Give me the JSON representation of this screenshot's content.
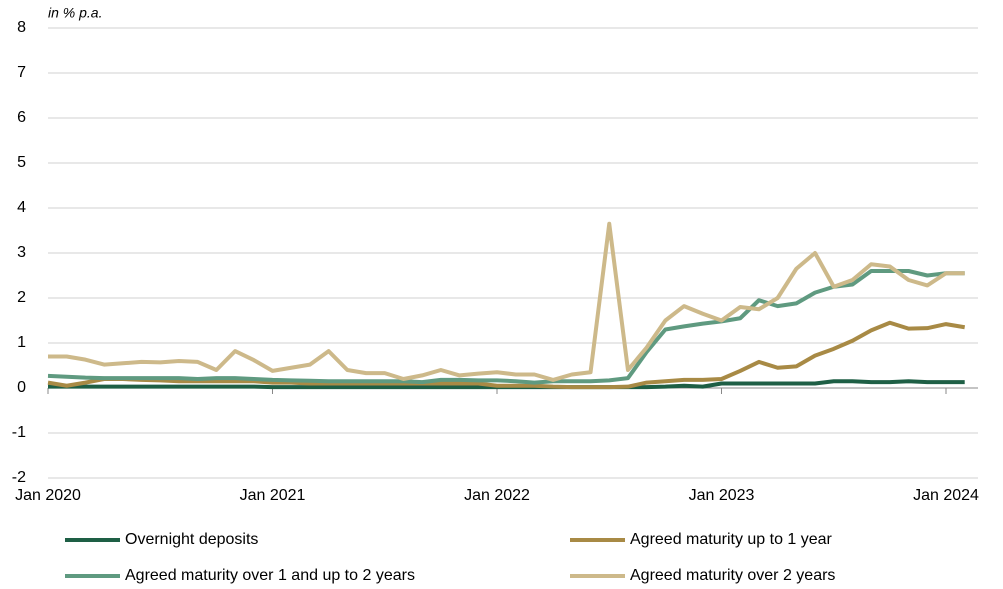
{
  "chart_data": {
    "type": "line",
    "y_label": "in % p.a.",
    "categories": [
      "Jan 2020",
      null,
      null,
      null,
      null,
      null,
      null,
      null,
      null,
      null,
      null,
      null,
      "Jan 2021",
      null,
      null,
      null,
      null,
      null,
      null,
      null,
      null,
      null,
      null,
      null,
      "Jan 2022",
      null,
      null,
      null,
      null,
      null,
      null,
      null,
      null,
      null,
      null,
      null,
      "Jan 2023",
      null,
      null,
      null,
      null,
      null,
      null,
      null,
      null,
      null,
      null,
      null,
      "Jan 2024",
      null
    ],
    "series": [
      {
        "name": "Overnight deposits",
        "color": "#1e5f45",
        "values": [
          0.03,
          0.03,
          0.03,
          0.03,
          0.03,
          0.03,
          0.03,
          0.03,
          0.03,
          0.03,
          0.03,
          0.03,
          0.02,
          0.02,
          0.02,
          0.02,
          0.02,
          0.02,
          0.02,
          0.02,
          0.02,
          0.02,
          0.02,
          0.02,
          0.02,
          0.02,
          0.02,
          0.02,
          0.02,
          0.02,
          0.02,
          0.02,
          0.02,
          0.03,
          0.05,
          0.03,
          0.1,
          0.1,
          0.1,
          0.1,
          0.1,
          0.1,
          0.15,
          0.15,
          0.13,
          0.13,
          0.15,
          0.13,
          0.13,
          0.13
        ]
      },
      {
        "name": "Agreed maturity up to 1 year",
        "color": "#a88a45",
        "values": [
          0.12,
          0.05,
          0.12,
          0.2,
          0.2,
          0.18,
          0.17,
          0.15,
          0.15,
          0.15,
          0.15,
          0.15,
          0.12,
          0.12,
          0.1,
          0.1,
          0.1,
          0.1,
          0.1,
          0.1,
          0.1,
          0.1,
          0.1,
          0.1,
          0.05,
          0.05,
          0.05,
          0.03,
          0.02,
          0.02,
          0.02,
          0.03,
          0.12,
          0.15,
          0.18,
          0.18,
          0.2,
          0.38,
          0.58,
          0.45,
          0.48,
          0.72,
          0.87,
          1.05,
          1.28,
          1.45,
          1.32,
          1.33,
          1.42,
          1.35
        ]
      },
      {
        "name": "Agreed maturity over 1 and up to 2 years",
        "color": "#5f9a80",
        "values": [
          0.27,
          0.25,
          0.23,
          0.22,
          0.22,
          0.22,
          0.22,
          0.22,
          0.2,
          0.22,
          0.22,
          0.2,
          0.18,
          0.17,
          0.16,
          0.15,
          0.15,
          0.15,
          0.15,
          0.15,
          0.13,
          0.18,
          0.18,
          0.17,
          0.17,
          0.15,
          0.12,
          0.15,
          0.15,
          0.15,
          0.17,
          0.22,
          0.8,
          1.3,
          1.37,
          1.43,
          1.48,
          1.55,
          1.95,
          1.82,
          1.88,
          2.12,
          2.25,
          2.3,
          2.6,
          2.6,
          2.6,
          2.5,
          2.55,
          2.55
        ]
      },
      {
        "name": "Agreed maturity over 2 years",
        "color": "#cdb98a",
        "values": [
          0.7,
          0.7,
          0.63,
          0.52,
          0.55,
          0.58,
          0.57,
          0.6,
          0.58,
          0.4,
          0.82,
          0.62,
          0.38,
          0.45,
          0.52,
          0.82,
          0.4,
          0.33,
          0.33,
          0.2,
          0.28,
          0.4,
          0.28,
          0.32,
          0.35,
          0.3,
          0.3,
          0.18,
          0.3,
          0.35,
          3.65,
          0.4,
          0.9,
          1.5,
          1.82,
          1.65,
          1.5,
          1.8,
          1.75,
          2.0,
          2.65,
          3.0,
          2.25,
          2.4,
          2.75,
          2.7,
          2.4,
          2.28,
          2.55,
          2.55
        ]
      }
    ],
    "ylim": [
      -2,
      8
    ],
    "yticks": [
      -2,
      -1,
      0,
      1,
      2,
      3,
      4,
      5,
      6,
      7,
      8
    ],
    "grid": true
  }
}
